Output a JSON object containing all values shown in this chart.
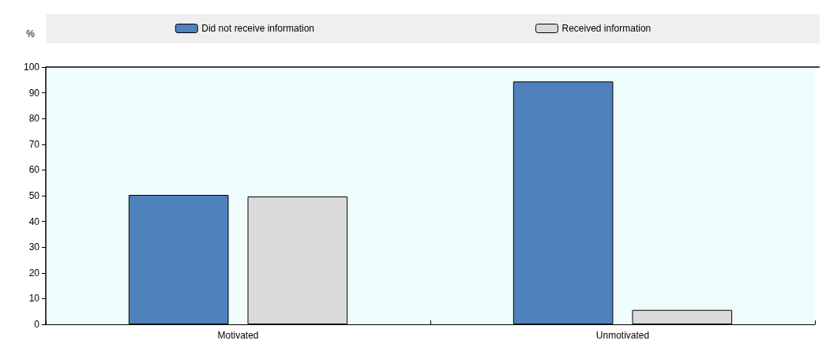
{
  "chart_data": {
    "type": "bar",
    "ylabel": "%",
    "categories": [
      "Motivated",
      "Unmotivated"
    ],
    "series": [
      {
        "name": "Did not receive information",
        "color": "#4f81bd",
        "values": [
          50.3,
          94.4
        ]
      },
      {
        "name": "Received information",
        "color": "#dadada",
        "values": [
          49.7,
          5.6
        ]
      }
    ],
    "ylim": [
      0,
      100
    ],
    "yticks": [
      0,
      10,
      20,
      30,
      40,
      50,
      60,
      70,
      80,
      90,
      100
    ],
    "legend": "top"
  }
}
